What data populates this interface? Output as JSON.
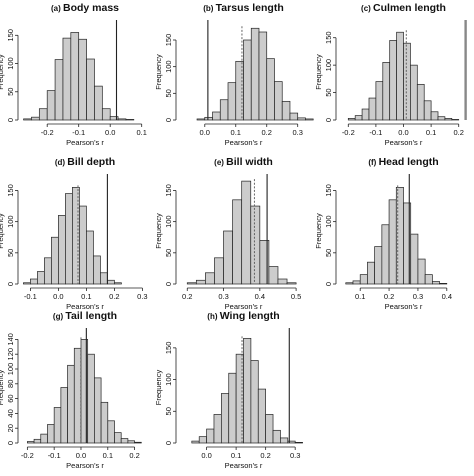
{
  "chart_data": [
    {
      "type": "bar",
      "tag": "(a)",
      "title": "Body mass",
      "xlabel": "Pearson's r",
      "ylabel": "Frequency",
      "xlim": [
        -0.28,
        0.12
      ],
      "ylim": [
        0,
        170
      ],
      "xticks": [
        -0.2,
        -0.1,
        0.0,
        0.1
      ],
      "xticklabels": [
        "-0.2",
        "-0.1",
        "0.0",
        "0.1"
      ],
      "yticks": [
        0,
        50,
        100,
        150
      ],
      "yticklabels": [
        "0",
        "50",
        "100",
        "150"
      ],
      "bin_width": 0.025,
      "bin_start": -0.275,
      "counts": [
        2,
        5,
        20,
        52,
        107,
        145,
        155,
        143,
        108,
        60,
        20,
        6,
        2,
        1,
        0,
        0
      ],
      "observed": 0.02,
      "observed_style": "solid",
      "mean_line": null
    },
    {
      "type": "bar",
      "tag": "(b)",
      "title": "Tarsus length",
      "xlabel": "Pearson's r",
      "ylabel": "Frequency",
      "xlim": [
        -0.08,
        0.33
      ],
      "ylim": [
        0,
        180
      ],
      "xticks": [
        0.0,
        0.1,
        0.2,
        0.3
      ],
      "xticklabels": [
        "0.0",
        "0.1",
        "0.2",
        "0.3"
      ],
      "yticks": [
        0,
        50,
        100,
        150
      ],
      "yticklabels": [
        "0",
        "50",
        "100",
        "150"
      ],
      "bin_width": 0.025,
      "bin_start": -0.075,
      "counts": [
        0,
        0,
        2,
        5,
        15,
        38,
        70,
        110,
        150,
        172,
        165,
        115,
        72,
        35,
        13,
        4,
        2
      ],
      "observed": 0.01,
      "observed_style": "solid",
      "mean_line": 0.12
    },
    {
      "type": "bar",
      "tag": "(c)",
      "title": "Culmen length",
      "xlabel": "Pearson's r",
      "ylabel": "Frequency",
      "xlim": [
        -0.23,
        0.23
      ],
      "ylim": [
        0,
        175
      ],
      "xticks": [
        -0.2,
        -0.1,
        0.0,
        0.1,
        0.2
      ],
      "xticklabels": [
        "-0.2",
        "-0.1",
        "0.0",
        "0.1",
        "0.2"
      ],
      "yticks": [
        0,
        50,
        100,
        150
      ],
      "yticklabels": [
        "0",
        "50",
        "100",
        "150"
      ],
      "bin_width": 0.025,
      "bin_start": -0.2,
      "counts": [
        3,
        8,
        20,
        40,
        70,
        105,
        145,
        160,
        140,
        100,
        65,
        35,
        15,
        6,
        3,
        1
      ],
      "observed": 0.225,
      "observed_style": "solid-gray",
      "mean_line": 0.01
    },
    {
      "type": "bar",
      "tag": "(d)",
      "title": "Bill depth",
      "xlabel": "Pearson's r",
      "ylabel": "Frequency",
      "xlim": [
        -0.13,
        0.32
      ],
      "ylim": [
        0,
        170
      ],
      "xticks": [
        -0.1,
        0.0,
        0.1,
        0.2,
        0.3
      ],
      "xticklabels": [
        "-0.1",
        "0.0",
        "0.1",
        "0.2",
        "0.3"
      ],
      "yticks": [
        0,
        50,
        100,
        150
      ],
      "yticklabels": [
        "0",
        "50",
        "100",
        "150"
      ],
      "bin_width": 0.025,
      "bin_start": -0.125,
      "counts": [
        2,
        8,
        20,
        42,
        75,
        110,
        145,
        155,
        125,
        85,
        45,
        18,
        6,
        2,
        0,
        0,
        0
      ],
      "observed": 0.175,
      "observed_style": "solid",
      "mean_line": 0.07
    },
    {
      "type": "bar",
      "tag": "(e)",
      "title": "Bill width",
      "xlabel": "Pearson's r",
      "ylabel": "Frequency",
      "xlim": [
        0.18,
        0.53
      ],
      "ylim": [
        0,
        170
      ],
      "xticks": [
        0.2,
        0.3,
        0.4,
        0.5
      ],
      "xticklabels": [
        "0.2",
        "0.3",
        "0.4",
        "0.5"
      ],
      "yticks": [
        0,
        50,
        100,
        150
      ],
      "yticklabels": [
        "0",
        "50",
        "100",
        "150"
      ],
      "bin_width": 0.025,
      "bin_start": 0.2,
      "counts": [
        2,
        6,
        18,
        42,
        85,
        135,
        165,
        125,
        70,
        28,
        8,
        2,
        0,
        0
      ],
      "observed": 0.42,
      "observed_style": "solid",
      "mean_line": 0.385
    },
    {
      "type": "bar",
      "tag": "(f)",
      "title": "Head length",
      "xlabel": "Pearson's r",
      "ylabel": "Frequency",
      "xlim": [
        0.03,
        0.47
      ],
      "ylim": [
        0,
        170
      ],
      "xticks": [
        0.1,
        0.2,
        0.3,
        0.4
      ],
      "xticklabels": [
        "0.1",
        "0.2",
        "0.3",
        "0.4"
      ],
      "yticks": [
        0,
        50,
        100,
        150
      ],
      "yticklabels": [
        "0",
        "50",
        "100",
        "150"
      ],
      "bin_width": 0.025,
      "bin_start": 0.05,
      "counts": [
        2,
        5,
        15,
        35,
        60,
        95,
        135,
        155,
        130,
        80,
        40,
        15,
        4,
        1,
        0,
        0,
        0
      ],
      "observed": 0.27,
      "observed_style": "solid",
      "mean_line": 0.23
    },
    {
      "type": "bar",
      "tag": "(g)",
      "title": "Tail length",
      "xlabel": "Pearson's r",
      "ylabel": "Frequency",
      "xlim": [
        -0.22,
        0.25
      ],
      "ylim": [
        0,
        150
      ],
      "xticks": [
        -0.2,
        -0.1,
        0.0,
        0.1,
        0.2
      ],
      "xticklabels": [
        "-0.2",
        "-0.1",
        "0.0",
        "0.1",
        "0.2"
      ],
      "yticks": [
        0,
        20,
        40,
        60,
        80,
        100,
        120,
        140
      ],
      "yticklabels": [
        "0",
        "20",
        "40",
        "60",
        "80",
        "100",
        "120",
        "140"
      ],
      "bin_width": 0.025,
      "bin_start": -0.2,
      "counts": [
        2,
        5,
        12,
        25,
        48,
        75,
        105,
        128,
        140,
        120,
        88,
        55,
        30,
        14,
        6,
        3,
        1,
        0
      ],
      "observed": 0.02,
      "observed_style": "solid",
      "mean_line": 0.0
    },
    {
      "type": "bar",
      "tag": "(h)",
      "title": "Wing length",
      "xlabel": "Pearson's r",
      "ylabel": "Frequency",
      "xlim": [
        -0.09,
        0.34
      ],
      "ylim": [
        0,
        175
      ],
      "xticks": [
        0.0,
        0.1,
        0.2,
        0.3
      ],
      "xticklabels": [
        "0.0",
        "0.1",
        "0.2",
        "0.3"
      ],
      "yticks": [
        0,
        50,
        100,
        150
      ],
      "yticklabels": [
        "0",
        "50",
        "100",
        "150"
      ],
      "bin_width": 0.025,
      "bin_start": -0.075,
      "counts": [
        0,
        3,
        10,
        22,
        45,
        78,
        110,
        140,
        165,
        130,
        85,
        45,
        20,
        8,
        3,
        1,
        0
      ],
      "observed": 0.28,
      "observed_style": "solid",
      "mean_line": 0.12
    }
  ]
}
